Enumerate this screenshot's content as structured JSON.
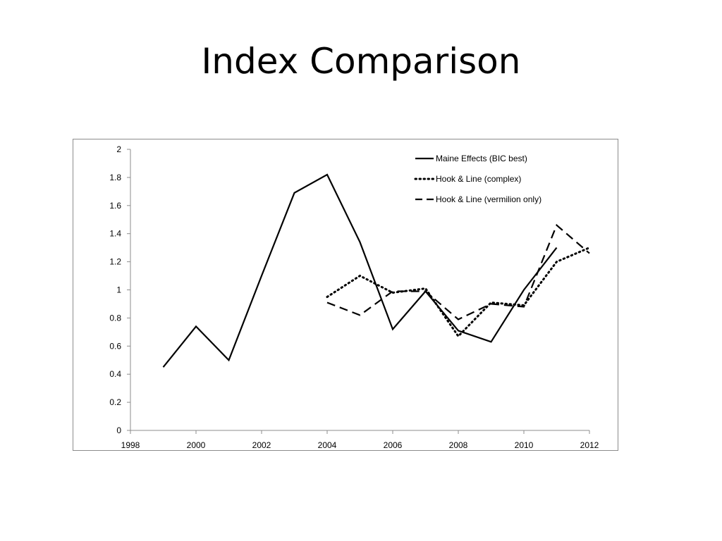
{
  "slide": {
    "title": "Index Comparison"
  },
  "chart_data": {
    "type": "line",
    "title": "",
    "xlabel": "",
    "ylabel": "",
    "xlim": [
      1998,
      2012
    ],
    "ylim": [
      0,
      2
    ],
    "x_ticks": [
      "1998",
      "2000",
      "2002",
      "2004",
      "2006",
      "2008",
      "2010",
      "2012"
    ],
    "x_tick_values": [
      1998,
      2000,
      2002,
      2004,
      2006,
      2008,
      2010,
      2012
    ],
    "y_ticks": [
      "0",
      "0.2",
      "0.4",
      "0.6",
      "0.8",
      "1",
      "1.2",
      "1.4",
      "1.6",
      "1.8",
      "2"
    ],
    "y_tick_values": [
      0,
      0.2,
      0.4,
      0.6,
      0.8,
      1,
      1.2,
      1.4,
      1.6,
      1.8,
      2
    ],
    "grid": false,
    "legend_position": "top-right",
    "series": [
      {
        "name": "Maine Effects (BIC best)",
        "style": "solid",
        "color": "#000000",
        "x": [
          1999,
          2000,
          2001,
          2002,
          2003,
          2004,
          2005,
          2006,
          2007,
          2008,
          2009,
          2010,
          2011
        ],
        "y": [
          0.45,
          0.74,
          0.5,
          1.1,
          1.69,
          1.82,
          1.34,
          0.72,
          0.99,
          0.71,
          0.63,
          1.0,
          1.3
        ]
      },
      {
        "name": "Hook & Line (complex)",
        "style": "dotted",
        "color": "#000000",
        "x": [
          2004,
          2005,
          2006,
          2007,
          2008,
          2009,
          2010,
          2011,
          2012
        ],
        "y": [
          0.95,
          1.1,
          0.98,
          1.01,
          0.67,
          0.91,
          0.89,
          1.2,
          1.3
        ]
      },
      {
        "name": "Hook & Line (vermilion only)",
        "style": "dashed",
        "color": "#000000",
        "x": [
          2004,
          2005,
          2006,
          2007,
          2008,
          2009,
          2010,
          2011,
          2012
        ],
        "y": [
          0.91,
          0.82,
          0.99,
          0.99,
          0.79,
          0.9,
          0.88,
          1.46,
          1.26
        ]
      }
    ]
  }
}
